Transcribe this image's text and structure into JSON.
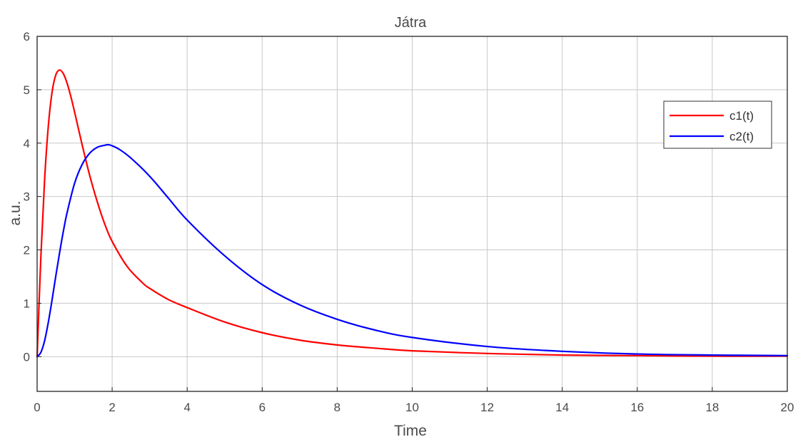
{
  "chart_data": {
    "type": "line",
    "title": "Játra",
    "xlabel": "Time",
    "ylabel": "a.u.",
    "xlim": [
      0,
      20
    ],
    "ylim": [
      -0.65,
      6
    ],
    "xticks": [
      0,
      2,
      4,
      6,
      8,
      10,
      12,
      14,
      16,
      18,
      20
    ],
    "yticks": [
      0,
      1,
      2,
      3,
      4,
      5,
      6
    ],
    "grid": true,
    "legend_position": "top-right",
    "series": [
      {
        "name": "c1(t)",
        "color": "#ff0000",
        "x": [
          0,
          0.1,
          0.2,
          0.3,
          0.4,
          0.5,
          0.6,
          0.7,
          0.8,
          0.9,
          1.0,
          1.2,
          1.4,
          1.6,
          1.8,
          2.0,
          2.4,
          2.8,
          3.0,
          3.5,
          4.0,
          5.0,
          6.0,
          7.0,
          8.0,
          9.0,
          10.0,
          12.0,
          14.0,
          16.0,
          18.0,
          20.0
        ],
        "y": [
          0,
          1.87,
          3.32,
          4.33,
          4.96,
          5.28,
          5.37,
          5.3,
          5.12,
          4.87,
          4.58,
          3.97,
          3.4,
          2.91,
          2.49,
          2.16,
          1.69,
          1.39,
          1.28,
          1.07,
          0.92,
          0.65,
          0.45,
          0.31,
          0.22,
          0.16,
          0.11,
          0.06,
          0.03,
          0.02,
          0.01,
          0.01
        ]
      },
      {
        "name": "c2(t)",
        "color": "#0000ff",
        "x": [
          0,
          0.1,
          0.2,
          0.3,
          0.4,
          0.5,
          0.6,
          0.7,
          0.8,
          1.0,
          1.2,
          1.4,
          1.6,
          1.8,
          1.9,
          2.0,
          2.2,
          2.5,
          3.0,
          3.5,
          4.0,
          5.0,
          6.0,
          7.0,
          8.0,
          9.0,
          10.0,
          12.0,
          14.0,
          16.0,
          18.0,
          20.0
        ],
        "y": [
          0,
          0.08,
          0.3,
          0.65,
          1.07,
          1.52,
          1.95,
          2.35,
          2.7,
          3.25,
          3.6,
          3.81,
          3.92,
          3.96,
          3.97,
          3.95,
          3.88,
          3.72,
          3.38,
          2.97,
          2.56,
          1.89,
          1.35,
          0.97,
          0.7,
          0.5,
          0.36,
          0.19,
          0.1,
          0.05,
          0.03,
          0.02
        ]
      }
    ]
  }
}
